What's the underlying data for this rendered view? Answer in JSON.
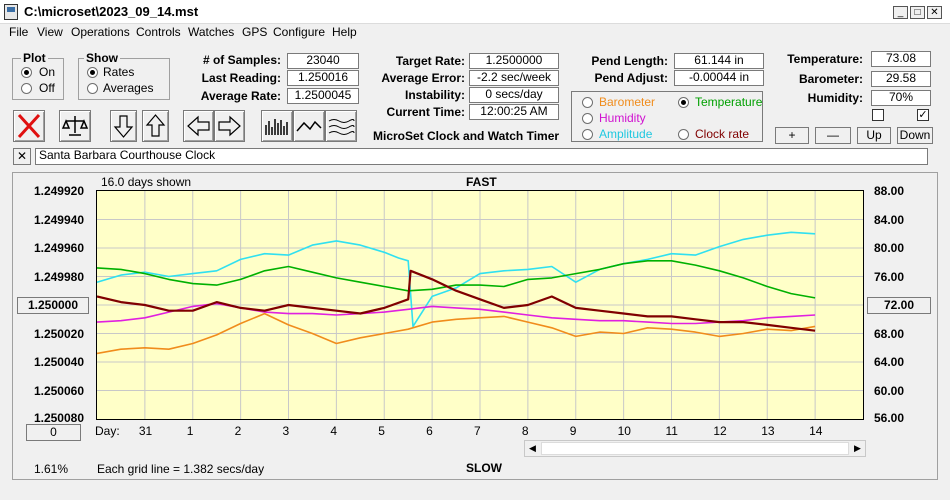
{
  "window": {
    "title": "C:\\microset\\2023_09_14.mst"
  },
  "menu": [
    "File",
    "View",
    "Operations",
    "Controls",
    "Watches",
    "GPS",
    "Configure",
    "Help"
  ],
  "plot_group": {
    "title": "Plot",
    "on_label": "On",
    "off_label": "Off",
    "selected": "On"
  },
  "show_group": {
    "title": "Show",
    "rates_label": "Rates",
    "averages_label": "Averages",
    "selected": "Rates"
  },
  "stats": {
    "samples_label": "# of Samples:",
    "samples_value": "23040",
    "last_reading_label": "Last Reading:",
    "last_reading_value": "1.250016",
    "average_rate_label": "Average Rate:",
    "average_rate_value": "1.2500045"
  },
  "rates": {
    "target_rate_label": "Target Rate:",
    "target_rate_value": "1.2500000",
    "average_error_label": "Average Error:",
    "average_error_value": "-2.2 sec/week",
    "instability_label": "Instability:",
    "instability_value": "0 secs/day",
    "current_time_label": "Current Time:",
    "current_time_value": "12:00:25 AM"
  },
  "pendulum": {
    "length_label": "Pend Length:",
    "length_value": "61.144 in",
    "adjust_label": "Pend Adjust:",
    "adjust_value": "-0.00044 in"
  },
  "environment": {
    "temperature_label": "Temperature:",
    "temperature_value": "73.08",
    "barometer_label": "Barometer:",
    "barometer_value": "29.58",
    "humidity_label": "Humidity:",
    "humidity_value": "70%"
  },
  "series_select": {
    "barometer": "Barometer",
    "temperature": "Temperature",
    "humidity": "Humidity",
    "amplitude": "Amplitude",
    "clock_rate": "Clock rate",
    "selected": "Temperature"
  },
  "scale_buttons": {
    "plus": "+",
    "minus": "—",
    "up": "Up",
    "down": "Down"
  },
  "app_caption": "MicroSet Clock and Watch Timer",
  "clock_name": "Santa Barbara Courthouse Clock",
  "close_x": "✕",
  "colors": {
    "barometer": "#f08c1c",
    "temperature": "#00b000",
    "humidity": "#e020e0",
    "amplitude": "#30e0f0",
    "clock_rate": "#800000",
    "plot_bg": "#ffffc8"
  },
  "chart_data": {
    "type": "line",
    "title": "FAST",
    "bottom_title": "SLOW",
    "days_shown": "16.0 days shown",
    "grid_note": "Each grid line = 1.382 secs/day",
    "percent_readout": "1.61%",
    "left_center_button": "1.250000",
    "right_center_button": "72.00",
    "left_bottom_button": "0",
    "x_axis_label": "Day:",
    "x_ticks": [
      "31",
      "1",
      "2",
      "3",
      "4",
      "5",
      "6",
      "7",
      "8",
      "9",
      "10",
      "11",
      "12",
      "13",
      "14"
    ],
    "x_range": [
      0,
      16
    ],
    "grid": true,
    "left_axis": {
      "ticks": [
        "1.249920",
        "1.249940",
        "1.249960",
        "1.249980",
        "1.250020",
        "1.250040",
        "1.250060",
        "1.250080"
      ],
      "range": [
        1.25008,
        1.24992
      ]
    },
    "right_axis": {
      "ticks": [
        "88.00",
        "84.00",
        "80.00",
        "76.00",
        "68.00",
        "64.00",
        "60.00",
        "56.00"
      ],
      "range": [
        56,
        88
      ]
    },
    "series": [
      {
        "name": "Amplitude",
        "axis": "right",
        "color": "#30e0f0",
        "x": [
          0,
          0.5,
          1,
          1.5,
          2,
          2.5,
          3,
          3.5,
          4,
          4.5,
          5,
          5.5,
          6,
          6.3,
          6.5,
          6.6,
          7,
          7.5,
          8,
          8.5,
          9,
          9.5,
          10,
          10.5,
          11,
          11.5,
          12,
          12.5,
          13,
          13.5,
          14,
          14.5,
          15
        ],
        "y": [
          75.2,
          76.2,
          76.6,
          76.0,
          76.4,
          76.8,
          78.4,
          79.2,
          79.0,
          80.4,
          81.0,
          80.4,
          79.4,
          78.6,
          78.2,
          69.0,
          73.2,
          74.4,
          76.4,
          76.8,
          77.0,
          77.4,
          75.2,
          77.0,
          77.8,
          78.4,
          79.2,
          79.0,
          80.2,
          81.2,
          81.8,
          82.2,
          82.0
        ]
      },
      {
        "name": "Temperature",
        "axis": "right",
        "color": "#00b000",
        "x": [
          0,
          0.5,
          1,
          1.5,
          2,
          2.5,
          3,
          3.5,
          4,
          4.5,
          5,
          5.5,
          6,
          6.5,
          7,
          7.5,
          8,
          8.5,
          9,
          9.5,
          10,
          10.5,
          11,
          11.5,
          12,
          12.5,
          13,
          13.5,
          14,
          14.5,
          15
        ],
        "y": [
          77.2,
          77.0,
          76.4,
          75.6,
          75.0,
          74.8,
          75.6,
          76.8,
          77.4,
          76.6,
          75.8,
          75.2,
          74.6,
          74.0,
          74.2,
          74.8,
          74.8,
          74.6,
          75.6,
          75.8,
          76.4,
          77.0,
          77.8,
          78.2,
          78.2,
          77.6,
          76.8,
          75.8,
          74.6,
          73.6,
          73.0
        ]
      },
      {
        "name": "Humidity",
        "axis": "right",
        "color": "#e020e0",
        "x": [
          0,
          0.5,
          1,
          1.5,
          2,
          2.5,
          3,
          3.5,
          4,
          4.5,
          5,
          5.5,
          6,
          6.5,
          7,
          7.5,
          8,
          8.5,
          9,
          9.5,
          10,
          10.5,
          11,
          11.5,
          12,
          12.5,
          13,
          13.5,
          14,
          14.5,
          15
        ],
        "y": [
          69.6,
          69.8,
          70.2,
          71.0,
          71.8,
          72.2,
          71.6,
          71.0,
          70.8,
          70.8,
          70.6,
          70.8,
          71.0,
          71.4,
          71.8,
          71.6,
          71.4,
          71.0,
          70.6,
          70.2,
          70.0,
          69.8,
          69.8,
          69.6,
          69.4,
          69.4,
          69.6,
          69.8,
          70.2,
          70.4,
          70.6
        ]
      },
      {
        "name": "Barometer",
        "axis": "right",
        "color": "#f08c1c",
        "x": [
          0,
          0.5,
          1,
          1.5,
          2,
          2.5,
          3,
          3.5,
          4,
          4.5,
          5,
          5.5,
          6,
          6.5,
          7,
          7.5,
          8,
          8.5,
          9,
          9.5,
          10,
          10.5,
          11,
          11.5,
          12,
          12.5,
          13,
          13.5,
          14,
          14.5,
          15
        ],
        "y": [
          65.2,
          65.8,
          66.0,
          65.8,
          66.6,
          67.8,
          69.4,
          70.8,
          69.2,
          68.0,
          66.6,
          67.4,
          68.0,
          68.6,
          69.6,
          70.0,
          70.2,
          70.4,
          69.6,
          68.8,
          67.6,
          68.2,
          68.0,
          68.8,
          68.6,
          68.2,
          67.6,
          68.0,
          68.6,
          68.4,
          69.0
        ]
      },
      {
        "name": "Clock rate",
        "axis": "left",
        "color": "#800000",
        "x": [
          0,
          0.5,
          1,
          1.5,
          2,
          2.5,
          3,
          3.5,
          4,
          4.5,
          5,
          5.5,
          6,
          6.5,
          6.55,
          7,
          7.5,
          8,
          8.5,
          9,
          9.5,
          10,
          10.5,
          11,
          11.5,
          12,
          12.5,
          13,
          13.5,
          14,
          14.5,
          15
        ],
        "y": [
          1.249994,
          1.249998,
          1.25,
          1.250004,
          1.250004,
          1.249998,
          1.250002,
          1.250004,
          1.25,
          1.250002,
          1.250004,
          1.250006,
          1.250002,
          1.249996,
          1.249976,
          1.249982,
          1.24999,
          1.249996,
          1.250002,
          1.25,
          1.249994,
          1.250002,
          1.250004,
          1.250006,
          1.250008,
          1.250008,
          1.25001,
          1.250012,
          1.250012,
          1.250014,
          1.250016,
          1.250018
        ]
      }
    ]
  }
}
